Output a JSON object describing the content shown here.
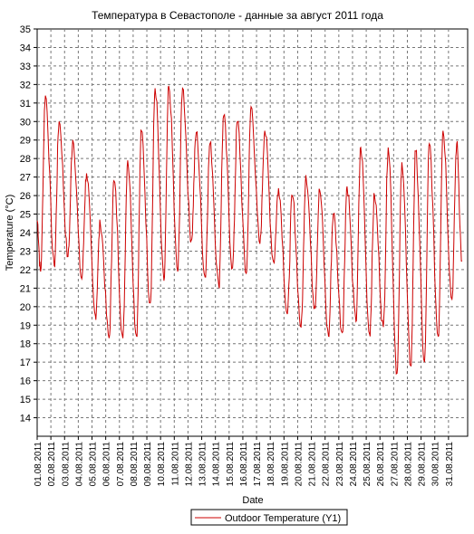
{
  "chart_data": {
    "type": "line",
    "title": "Температура в Севастополе - данные за август 2011 года",
    "xlabel": "Date",
    "ylabel": "Temperature (°C)",
    "ylim": [
      13,
      35
    ],
    "yticks": [
      14,
      15,
      16,
      17,
      18,
      19,
      20,
      21,
      22,
      23,
      24,
      25,
      26,
      27,
      28,
      29,
      30,
      31,
      32,
      33,
      34,
      35
    ],
    "x_tick_labels": [
      "01.08.2011",
      "02.08.2011",
      "03.08.2011",
      "04.08.2011",
      "05.08.2011",
      "06.08.2011",
      "07.08.2011",
      "08.08.2011",
      "09.08.2011",
      "10.08.2011",
      "11.08.2011",
      "12.08.2011",
      "13.08.2011",
      "14.08.2011",
      "15.08.2011",
      "16.08.2011",
      "17.08.2011",
      "18.08.2011",
      "19.08.2011",
      "20.08.2011",
      "21.08.2011",
      "22.08.2011",
      "23.08.2011",
      "24.08.2011",
      "25.08.2011",
      "26.08.2011",
      "27.08.2011",
      "28.08.2011",
      "29.08.2011",
      "30.08.2011",
      "31.08.2011"
    ],
    "grid": true,
    "legend_position": "bottom-center",
    "series": [
      {
        "name": "Outdoor Temperature (Y1)",
        "color": "#cc0000",
        "daily_max": [
          31.4,
          30.0,
          29.0,
          27.2,
          24.5,
          26.8,
          27.9,
          29.5,
          31.8,
          31.9,
          31.8,
          29.4,
          28.8,
          30.3,
          30.0,
          30.8,
          29.5,
          26.4,
          26.0,
          27.1,
          26.3,
          25.0,
          26.5,
          28.6,
          26.0,
          28.6,
          27.8,
          28.4,
          28.8,
          29.5,
          28.8
        ],
        "daily_min": [
          21.9,
          22.2,
          22.7,
          21.5,
          19.5,
          18.3,
          18.3,
          18.4,
          20.2,
          21.4,
          21.9,
          23.6,
          21.6,
          21.1,
          22.1,
          21.8,
          23.4,
          22.4,
          19.6,
          18.9,
          20.0,
          18.4,
          18.6,
          19.2,
          18.5,
          18.9,
          16.4,
          16.8,
          17.0,
          18.4,
          20.4
        ],
        "end_value": 22.5
      }
    ]
  }
}
